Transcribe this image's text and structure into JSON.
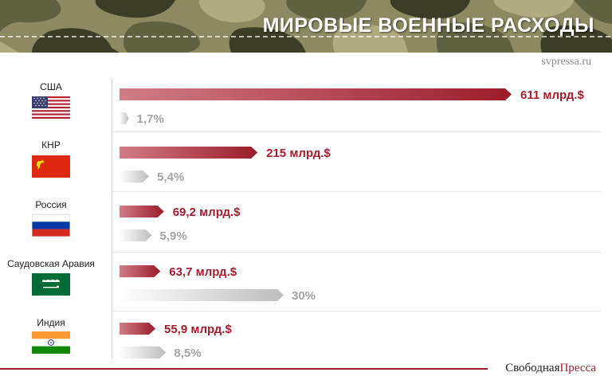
{
  "header": {
    "title": "МИРОВЫЕ ВОЕННЫЕ РАСХОДЫ",
    "source": "svpressa.ru"
  },
  "footer": {
    "brand_part1": "Свободная",
    "brand_part2": "Пресса"
  },
  "colors": {
    "spend_bar": "#a51d2d",
    "spend_bar_light": "#d07d86",
    "pct_bar": "#c8c8c8",
    "camo": [
      "#8d8a62",
      "#5f6140",
      "#3b3d26",
      "#b1ab80"
    ]
  },
  "flags": {
    "usa": "us-flag-icon",
    "china": "china-flag-icon",
    "russia": "russia-flag-icon",
    "saudi": "saudi-flag-icon",
    "india": "india-flag-icon"
  },
  "chart_data": {
    "type": "bar",
    "orientation": "horizontal",
    "categories": [
      "США",
      "КНР",
      "Россия",
      "Саудовская Аравия",
      "Индия"
    ],
    "series": [
      {
        "values": [
          611,
          215,
          69.2,
          63.7,
          55.9
        ],
        "labels": [
          "611 млрд.$",
          "215 млрд.$",
          "69,2 млрд.$",
          "63,7 млрд.$",
          "55,9 млрд.$"
        ]
      },
      {
        "values": [
          1.7,
          5.4,
          5.9,
          30,
          8.5
        ],
        "labels": [
          "1,7%",
          "5,4%",
          "5,9%",
          "30%",
          "8,5%"
        ]
      }
    ],
    "xlim": [
      0,
      611
    ],
    "pct_xlim": [
      0,
      30
    ],
    "grid": false,
    "legend": "none"
  }
}
